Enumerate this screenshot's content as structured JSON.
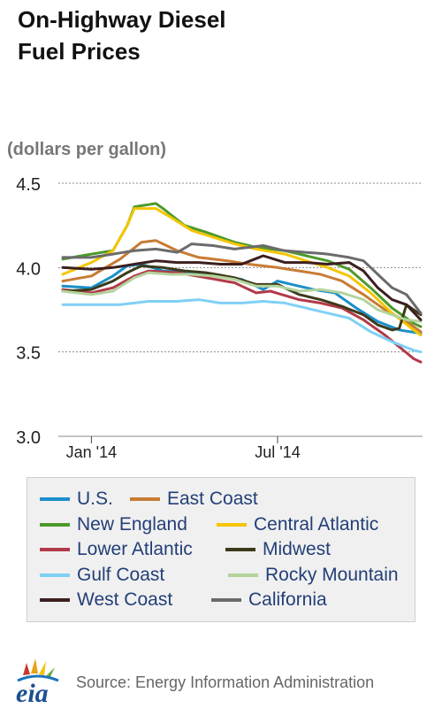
{
  "header": {
    "title_line1": "On-Highway Diesel",
    "title_line2": "Fuel Prices",
    "units": "(dollars per gallon)"
  },
  "footer": {
    "logo_text": "eia",
    "source": "Source: Energy Information Administration"
  },
  "chart_data": {
    "type": "line",
    "title": "On-Highway Diesel Fuel Prices",
    "ylabel": "(dollars per gallon)",
    "xlabel": "",
    "ylim": [
      3.0,
      4.5
    ],
    "yticks": [
      3.0,
      3.5,
      4.0,
      4.5
    ],
    "ytick_labels": [
      "3.0",
      "3.5",
      "4.0",
      "4.5"
    ],
    "xtick_labels": [
      "Jan '14",
      "Jul '14"
    ],
    "xtick_weeks": [
      4,
      30
    ],
    "x_first_week": "2013-12-02",
    "x_count": 42,
    "grid": true,
    "legend_position": "bottom",
    "series": [
      {
        "name": "U.S.",
        "color": "#1b8fc9",
        "keypoints": [
          [
            0,
            3.89
          ],
          [
            4,
            3.88
          ],
          [
            7,
            3.95
          ],
          [
            9,
            4.01
          ],
          [
            11,
            4.02
          ],
          [
            14,
            3.98
          ],
          [
            18,
            3.97
          ],
          [
            22,
            3.95
          ],
          [
            25,
            3.93
          ],
          [
            28,
            3.87
          ],
          [
            30,
            3.92
          ],
          [
            33,
            3.89
          ],
          [
            35,
            3.87
          ],
          [
            38,
            3.85
          ],
          [
            41,
            3.76
          ],
          [
            44,
            3.68
          ],
          [
            47,
            3.63
          ],
          [
            50,
            3.61
          ]
        ]
      },
      {
        "name": "East Coast",
        "color": "#c87b34",
        "keypoints": [
          [
            0,
            3.92
          ],
          [
            4,
            3.95
          ],
          [
            8,
            4.05
          ],
          [
            11,
            4.15
          ],
          [
            13,
            4.16
          ],
          [
            16,
            4.1
          ],
          [
            19,
            4.06
          ],
          [
            23,
            4.04
          ],
          [
            26,
            4.02
          ],
          [
            30,
            4.0
          ],
          [
            33,
            3.98
          ],
          [
            36,
            3.96
          ],
          [
            39,
            3.92
          ],
          [
            42,
            3.84
          ],
          [
            45,
            3.75
          ],
          [
            48,
            3.68
          ],
          [
            50,
            3.62
          ]
        ]
      },
      {
        "name": "New England",
        "color": "#4c9a2a",
        "keypoints": [
          [
            0,
            4.05
          ],
          [
            4,
            4.08
          ],
          [
            7,
            4.1
          ],
          [
            9,
            4.25
          ],
          [
            10,
            4.36
          ],
          [
            13,
            4.38
          ],
          [
            14,
            4.35
          ],
          [
            17,
            4.25
          ],
          [
            20,
            4.21
          ],
          [
            24,
            4.15
          ],
          [
            27,
            4.12
          ],
          [
            31,
            4.1
          ],
          [
            34,
            4.07
          ],
          [
            37,
            4.04
          ],
          [
            40,
            3.99
          ],
          [
            43,
            3.88
          ],
          [
            46,
            3.76
          ],
          [
            49,
            3.67
          ],
          [
            50,
            3.65
          ]
        ]
      },
      {
        "name": "Central Atlantic",
        "color": "#f5c500",
        "keypoints": [
          [
            0,
            3.96
          ],
          [
            4,
            4.03
          ],
          [
            7,
            4.1
          ],
          [
            9,
            4.25
          ],
          [
            10,
            4.35
          ],
          [
            13,
            4.35
          ],
          [
            15,
            4.3
          ],
          [
            18,
            4.22
          ],
          [
            21,
            4.18
          ],
          [
            24,
            4.14
          ],
          [
            27,
            4.11
          ],
          [
            31,
            4.08
          ],
          [
            34,
            4.04
          ],
          [
            37,
            4.0
          ],
          [
            40,
            3.95
          ],
          [
            43,
            3.85
          ],
          [
            46,
            3.73
          ],
          [
            49,
            3.63
          ],
          [
            50,
            3.6
          ]
        ]
      },
      {
        "name": "Lower Atlantic",
        "color": "#b23a48",
        "keypoints": [
          [
            0,
            3.87
          ],
          [
            4,
            3.85
          ],
          [
            7,
            3.88
          ],
          [
            10,
            3.95
          ],
          [
            12,
            3.98
          ],
          [
            16,
            3.97
          ],
          [
            20,
            3.94
          ],
          [
            24,
            3.91
          ],
          [
            27,
            3.85
          ],
          [
            29,
            3.86
          ],
          [
            33,
            3.81
          ],
          [
            36,
            3.79
          ],
          [
            39,
            3.76
          ],
          [
            42,
            3.69
          ],
          [
            45,
            3.6
          ],
          [
            47,
            3.53
          ],
          [
            49,
            3.46
          ],
          [
            50,
            3.44
          ]
        ]
      },
      {
        "name": "Midwest",
        "color": "#3d3a1b",
        "keypoints": [
          [
            0,
            3.86
          ],
          [
            4,
            3.87
          ],
          [
            7,
            3.92
          ],
          [
            9,
            3.97
          ],
          [
            11,
            4.01
          ],
          [
            14,
            4.0
          ],
          [
            17,
            3.98
          ],
          [
            20,
            3.97
          ],
          [
            24,
            3.94
          ],
          [
            27,
            3.9
          ],
          [
            30,
            3.9
          ],
          [
            33,
            3.84
          ],
          [
            36,
            3.81
          ],
          [
            39,
            3.77
          ],
          [
            42,
            3.72
          ],
          [
            44,
            3.66
          ],
          [
            46,
            3.63
          ],
          [
            47,
            3.64
          ],
          [
            48,
            3.78
          ],
          [
            49,
            3.75
          ],
          [
            50,
            3.72
          ]
        ]
      },
      {
        "name": "Gulf Coast",
        "color": "#7fd0f5",
        "keypoints": [
          [
            0,
            3.78
          ],
          [
            4,
            3.78
          ],
          [
            8,
            3.78
          ],
          [
            12,
            3.8
          ],
          [
            16,
            3.8
          ],
          [
            19,
            3.81
          ],
          [
            22,
            3.79
          ],
          [
            25,
            3.79
          ],
          [
            28,
            3.8
          ],
          [
            31,
            3.79
          ],
          [
            34,
            3.76
          ],
          [
            37,
            3.73
          ],
          [
            40,
            3.7
          ],
          [
            43,
            3.62
          ],
          [
            46,
            3.56
          ],
          [
            49,
            3.51
          ],
          [
            50,
            3.5
          ]
        ]
      },
      {
        "name": "Rocky Mountain",
        "color": "#b3d39c",
        "keypoints": [
          [
            0,
            3.86
          ],
          [
            4,
            3.84
          ],
          [
            7,
            3.86
          ],
          [
            10,
            3.94
          ],
          [
            12,
            3.97
          ],
          [
            15,
            3.96
          ],
          [
            18,
            3.96
          ],
          [
            21,
            3.95
          ],
          [
            24,
            3.93
          ],
          [
            27,
            3.89
          ],
          [
            30,
            3.89
          ],
          [
            33,
            3.86
          ],
          [
            36,
            3.87
          ],
          [
            39,
            3.85
          ],
          [
            42,
            3.81
          ],
          [
            44,
            3.75
          ],
          [
            46,
            3.72
          ],
          [
            48,
            3.69
          ],
          [
            50,
            3.68
          ]
        ]
      },
      {
        "name": "West Coast",
        "color": "#3c1f1f",
        "keypoints": [
          [
            0,
            4.0
          ],
          [
            4,
            3.99
          ],
          [
            7,
            4.0
          ],
          [
            10,
            4.02
          ],
          [
            13,
            4.04
          ],
          [
            16,
            4.03
          ],
          [
            19,
            4.03
          ],
          [
            22,
            4.02
          ],
          [
            25,
            4.02
          ],
          [
            28,
            4.07
          ],
          [
            31,
            4.03
          ],
          [
            34,
            4.03
          ],
          [
            37,
            4.02
          ],
          [
            40,
            4.03
          ],
          [
            42,
            3.98
          ],
          [
            44,
            3.88
          ],
          [
            46,
            3.81
          ],
          [
            48,
            3.78
          ],
          [
            50,
            3.69
          ]
        ]
      },
      {
        "name": "California",
        "color": "#6b6b6b",
        "keypoints": [
          [
            0,
            4.06
          ],
          [
            4,
            4.06
          ],
          [
            7,
            4.08
          ],
          [
            10,
            4.1
          ],
          [
            13,
            4.11
          ],
          [
            16,
            4.09
          ],
          [
            18,
            4.14
          ],
          [
            21,
            4.13
          ],
          [
            24,
            4.11
          ],
          [
            28,
            4.13
          ],
          [
            31,
            4.1
          ],
          [
            34,
            4.09
          ],
          [
            37,
            4.08
          ],
          [
            40,
            4.06
          ],
          [
            42,
            4.04
          ],
          [
            44,
            3.96
          ],
          [
            46,
            3.88
          ],
          [
            48,
            3.84
          ],
          [
            50,
            3.73
          ]
        ]
      }
    ]
  }
}
